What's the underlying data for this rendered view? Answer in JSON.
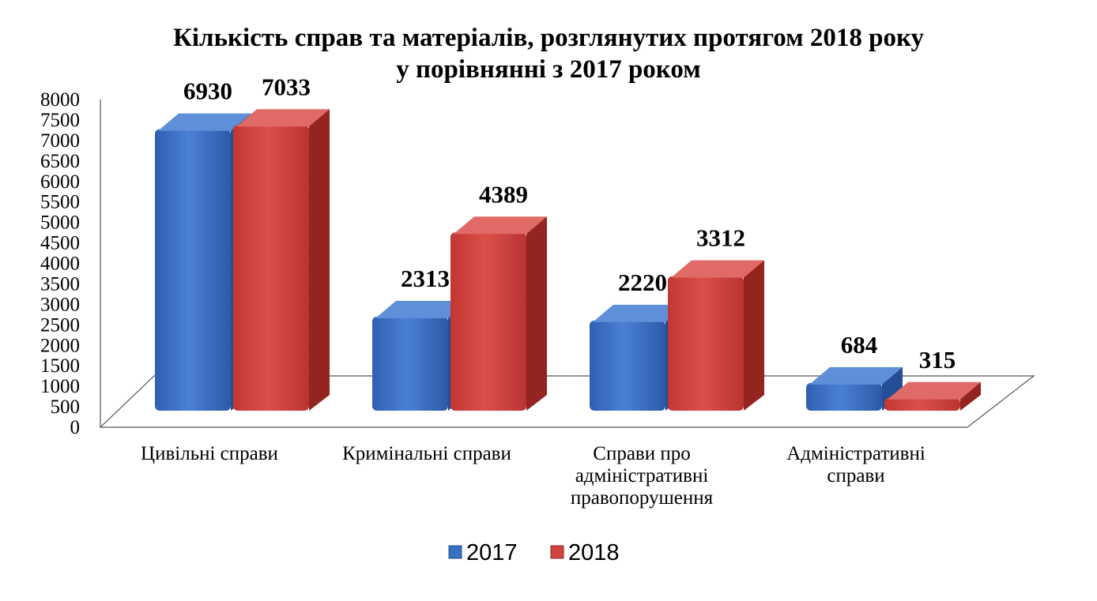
{
  "chart_data": {
    "type": "bar",
    "title": [
      "Кількість справ та матеріалів, розглянутих протягом 2018 року",
      "у порівнянні з 2017 роком"
    ],
    "categories": [
      [
        "Цивільні справи"
      ],
      [
        "Кримінальні справи"
      ],
      [
        "Справи про",
        "адміністративні",
        "правопорушення"
      ],
      [
        "Адміністративні",
        "справи"
      ]
    ],
    "series": [
      {
        "name": "2017",
        "values": [
          6930,
          2313,
          2220,
          684
        ],
        "color": "#3a6fc4",
        "top_color": "#5e8fd8",
        "side_color": "#244f96"
      },
      {
        "name": "2018",
        "values": [
          7033,
          4389,
          3312,
          315
        ],
        "color": "#d0433f",
        "top_color": "#e06a66",
        "side_color": "#93241f"
      }
    ],
    "ylim": [
      0,
      8000
    ],
    "yticks": [
      "0",
      "500",
      "1000",
      "1500",
      "2000",
      "2500",
      "3000",
      "3500",
      "4000",
      "4500",
      "5000",
      "5500",
      "6000",
      "6500",
      "7000",
      "7500",
      "8000"
    ],
    "grid": false,
    "legend": "bottom",
    "style": "3d-clustered-bar"
  }
}
